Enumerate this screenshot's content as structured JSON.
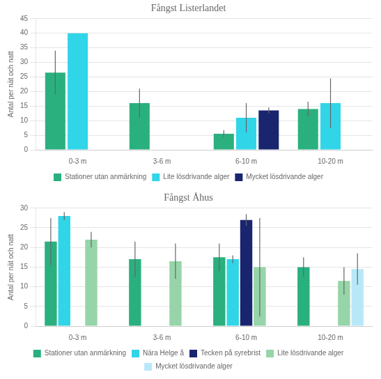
{
  "chart_data": [
    {
      "type": "bar",
      "title": "Fångst Listerlandet",
      "y_label": "Antal per nät och natt",
      "categories": [
        "0-3 m",
        "3-6 m",
        "6-10 m",
        "10-20 m"
      ],
      "series": [
        {
          "name": "Stationer utan anmärkning",
          "color": "#2ab07f",
          "values": [
            26.5,
            16.0,
            5.5,
            14.0
          ],
          "errors": [
            7.5,
            5.0,
            1.2,
            2.5
          ]
        },
        {
          "name": "Lite lösdrivande alger",
          "color": "#30d5e8",
          "values": [
            40.0,
            null,
            11.0,
            16.0
          ],
          "errors": [
            null,
            null,
            5.0,
            8.5
          ]
        },
        {
          "name": "Mycket lösdrivande alger",
          "color": "#1a2570",
          "values": [
            null,
            null,
            13.5,
            null
          ],
          "errors": [
            null,
            null,
            1.0,
            null
          ]
        }
      ],
      "ylim": [
        0,
        45
      ],
      "yticks": [
        0,
        5,
        10,
        15,
        20,
        25,
        30,
        35,
        40,
        45
      ],
      "grid": true,
      "legend": "bottom"
    },
    {
      "type": "bar",
      "title": "Fångst Åhus",
      "y_label": "Antal per nät och natt",
      "categories": [
        "0-3 m",
        "3-6 m",
        "6-10 m",
        "10-20 m"
      ],
      "series": [
        {
          "name": "Stationer utan anmärkning",
          "color": "#2ab07f",
          "values": [
            21.5,
            17.0,
            17.5,
            15.0
          ],
          "errors": [
            6.0,
            4.5,
            3.5,
            2.5
          ]
        },
        {
          "name": "Nära Helge å",
          "color": "#30d5e8",
          "values": [
            28.0,
            null,
            17.0,
            null
          ],
          "errors": [
            1.0,
            null,
            1.0,
            null
          ]
        },
        {
          "name": "Tecken på syrebrist",
          "color": "#1a2570",
          "values": [
            null,
            null,
            27.0,
            null
          ],
          "errors": [
            null,
            null,
            1.5,
            null
          ]
        },
        {
          "name": "Lite lösdrivande alger",
          "color": "#96d5a8",
          "values": [
            22.0,
            16.5,
            15.0,
            11.5
          ],
          "errors": [
            2.0,
            4.5,
            12.5,
            3.5
          ]
        },
        {
          "name": "Mycket lösdrivande alger",
          "color": "#b8e8f8",
          "values": [
            null,
            null,
            null,
            14.5
          ],
          "errors": [
            null,
            null,
            null,
            4.0
          ]
        }
      ],
      "ylim": [
        0,
        30
      ],
      "yticks": [
        0,
        5,
        10,
        15,
        20,
        25,
        30
      ],
      "grid": true,
      "legend": "bottom"
    }
  ]
}
